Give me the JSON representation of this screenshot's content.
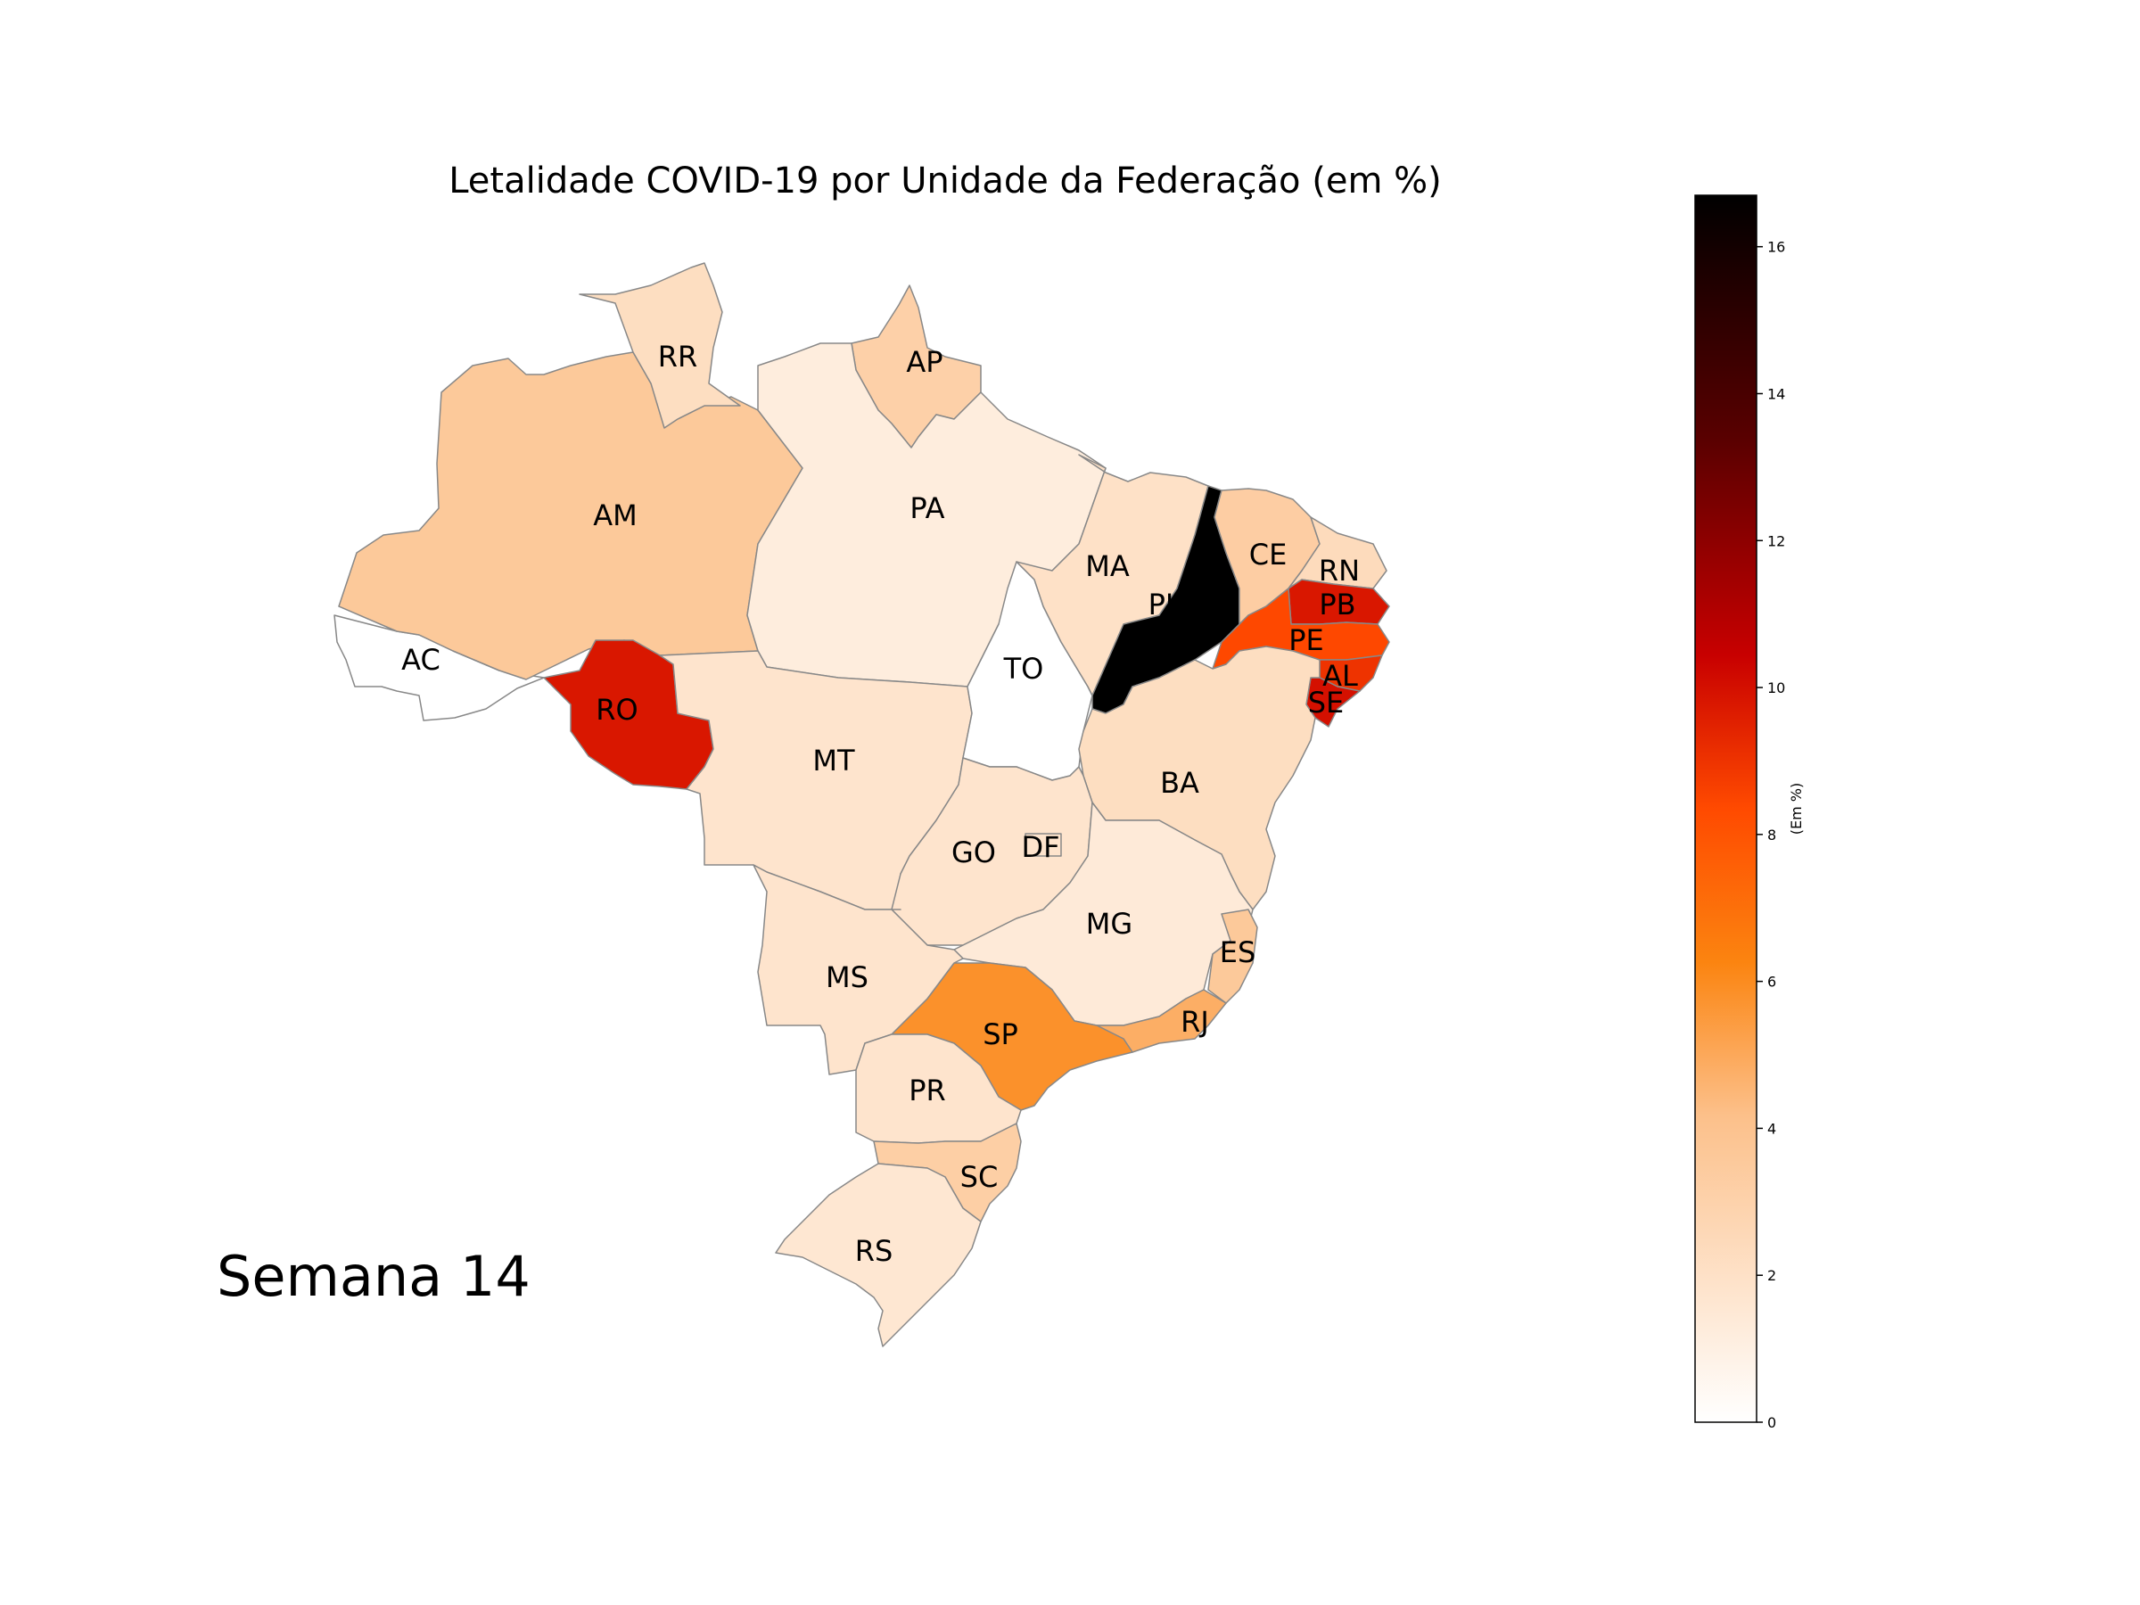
{
  "title": "Letalidade COVID-19 por Unidade da Federação (em %)",
  "week_label": "Semana 14",
  "colorbar": {
    "label": "(Em %)",
    "min": 0,
    "max": 16.7,
    "ticks": [
      "0",
      "2",
      "4",
      "6",
      "8",
      "10",
      "12",
      "14",
      "16"
    ],
    "stops": [
      {
        "v": 0,
        "color": "#ffffff"
      },
      {
        "v": 0.25,
        "color": "#fcc08a"
      },
      {
        "v": 0.375,
        "color": "#fb8410"
      },
      {
        "v": 0.5,
        "color": "#ff4a00"
      },
      {
        "v": 0.625,
        "color": "#c80000"
      },
      {
        "v": 0.8,
        "color": "#5a0000"
      },
      {
        "v": 1,
        "color": "#000000"
      }
    ]
  },
  "chart_data": {
    "type": "choropleth",
    "title": "Letalidade COVID-19 por Unidade da Federação (em %)",
    "legend_label": "(Em %)",
    "range": [
      0,
      16.7
    ],
    "states": [
      {
        "code": "AC",
        "value": 0.0
      },
      {
        "code": "AM",
        "value": 3.6
      },
      {
        "code": "RR",
        "value": 2.2
      },
      {
        "code": "AP",
        "value": 3.1
      },
      {
        "code": "PA",
        "value": 1.2
      },
      {
        "code": "RO",
        "value": 9.8
      },
      {
        "code": "MT",
        "value": 1.8
      },
      {
        "code": "TO",
        "value": 0.0
      },
      {
        "code": "MA",
        "value": 2.0
      },
      {
        "code": "PI",
        "value": 16.7
      },
      {
        "code": "CE",
        "value": 3.3
      },
      {
        "code": "RN",
        "value": 2.4
      },
      {
        "code": "PB",
        "value": 9.8
      },
      {
        "code": "PE",
        "value": 8.4
      },
      {
        "code": "AL",
        "value": 9.0
      },
      {
        "code": "SE",
        "value": 10.0
      },
      {
        "code": "BA",
        "value": 2.2
      },
      {
        "code": "GO",
        "value": 1.8
      },
      {
        "code": "DF",
        "value": 1.8
      },
      {
        "code": "MG",
        "value": 1.4
      },
      {
        "code": "ES",
        "value": 3.6
      },
      {
        "code": "RJ",
        "value": 4.8
      },
      {
        "code": "SP",
        "value": 5.8
      },
      {
        "code": "MS",
        "value": 1.8
      },
      {
        "code": "PR",
        "value": 1.8
      },
      {
        "code": "SC",
        "value": 3.2
      },
      {
        "code": "RS",
        "value": 1.6
      }
    ]
  }
}
